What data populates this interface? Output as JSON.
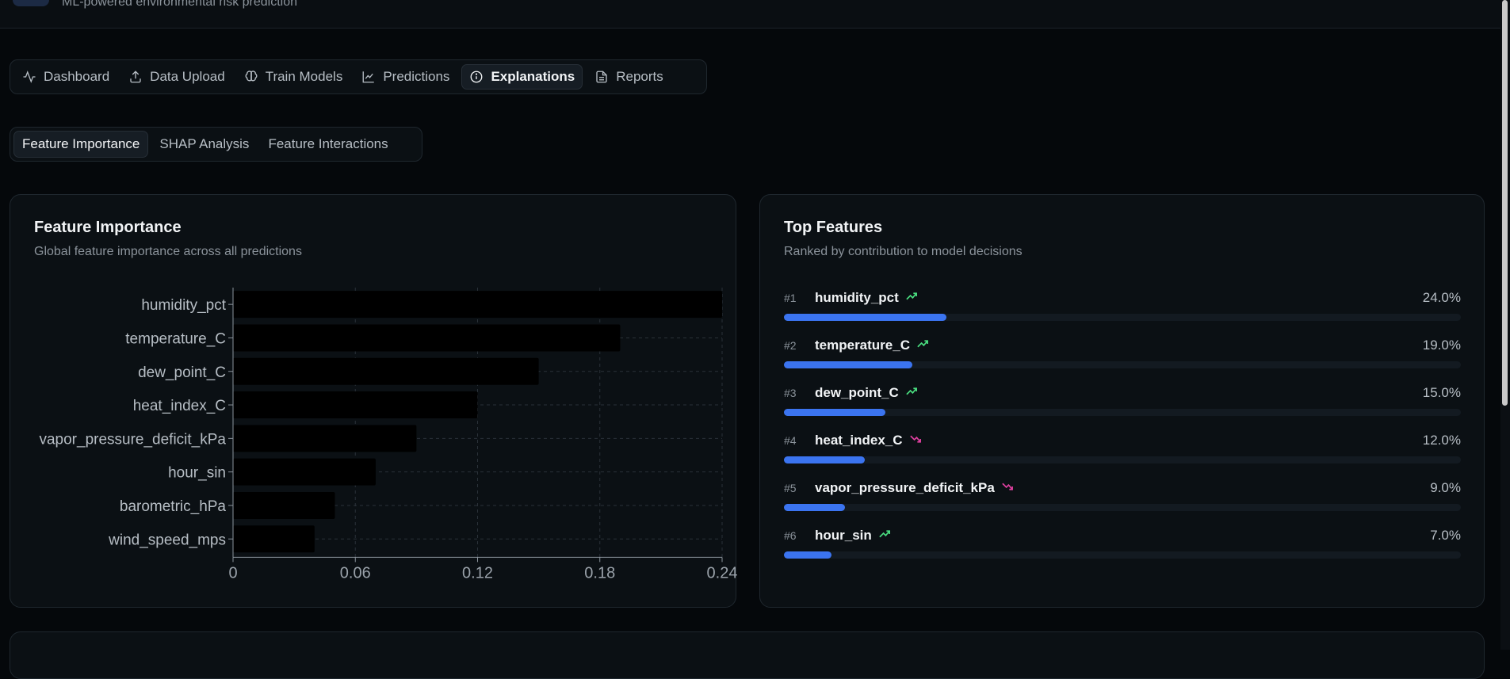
{
  "header": {
    "subtitle": "ML-powered environmental risk prediction"
  },
  "nav": {
    "items": [
      {
        "label": "Dashboard",
        "icon": "activity-icon",
        "active": false
      },
      {
        "label": "Data Upload",
        "icon": "upload-icon",
        "active": false
      },
      {
        "label": "Train Models",
        "icon": "brain-icon",
        "active": false
      },
      {
        "label": "Predictions",
        "icon": "line-chart-icon",
        "active": false
      },
      {
        "label": "Explanations",
        "icon": "info-icon",
        "active": true
      },
      {
        "label": "Reports",
        "icon": "file-text-icon",
        "active": false
      }
    ]
  },
  "subtabs": [
    {
      "label": "Feature Importance",
      "active": true
    },
    {
      "label": "SHAP Analysis",
      "active": false
    },
    {
      "label": "Feature Interactions",
      "active": false
    }
  ],
  "feature_importance": {
    "title": "Feature Importance",
    "description": "Global feature importance across all predictions"
  },
  "chart_data": {
    "type": "bar",
    "orientation": "horizontal",
    "categories": [
      "humidity_pct",
      "temperature_C",
      "dew_point_C",
      "heat_index_C",
      "vapor_pressure_deficit_kPa",
      "hour_sin",
      "barometric_hPa",
      "wind_speed_mps"
    ],
    "values": [
      0.24,
      0.19,
      0.15,
      0.12,
      0.09,
      0.07,
      0.05,
      0.04
    ],
    "xlim": [
      0,
      0.24
    ],
    "xticks": [
      "0",
      "0.06",
      "0.12",
      "0.18",
      "0.24"
    ],
    "grid": true,
    "bar_color": "#000000"
  },
  "top_features": {
    "title": "Top Features",
    "description": "Ranked by contribution to model decisions",
    "items": [
      {
        "rank": "#1",
        "name": "humidity_pct",
        "pct": "24.0%",
        "value": 0.24,
        "trend": "up"
      },
      {
        "rank": "#2",
        "name": "temperature_C",
        "pct": "19.0%",
        "value": 0.19,
        "trend": "up"
      },
      {
        "rank": "#3",
        "name": "dew_point_C",
        "pct": "15.0%",
        "value": 0.15,
        "trend": "up"
      },
      {
        "rank": "#4",
        "name": "heat_index_C",
        "pct": "12.0%",
        "value": 0.12,
        "trend": "down"
      },
      {
        "rank": "#5",
        "name": "vapor_pressure_deficit_kPa",
        "pct": "9.0%",
        "value": 0.09,
        "trend": "down"
      },
      {
        "rank": "#6",
        "name": "hour_sin",
        "pct": "7.0%",
        "value": 0.07,
        "trend": "up"
      }
    ]
  },
  "colors": {
    "accent": "#3b74f0",
    "trend_up": "#4ade80",
    "trend_down": "#e040a0"
  }
}
